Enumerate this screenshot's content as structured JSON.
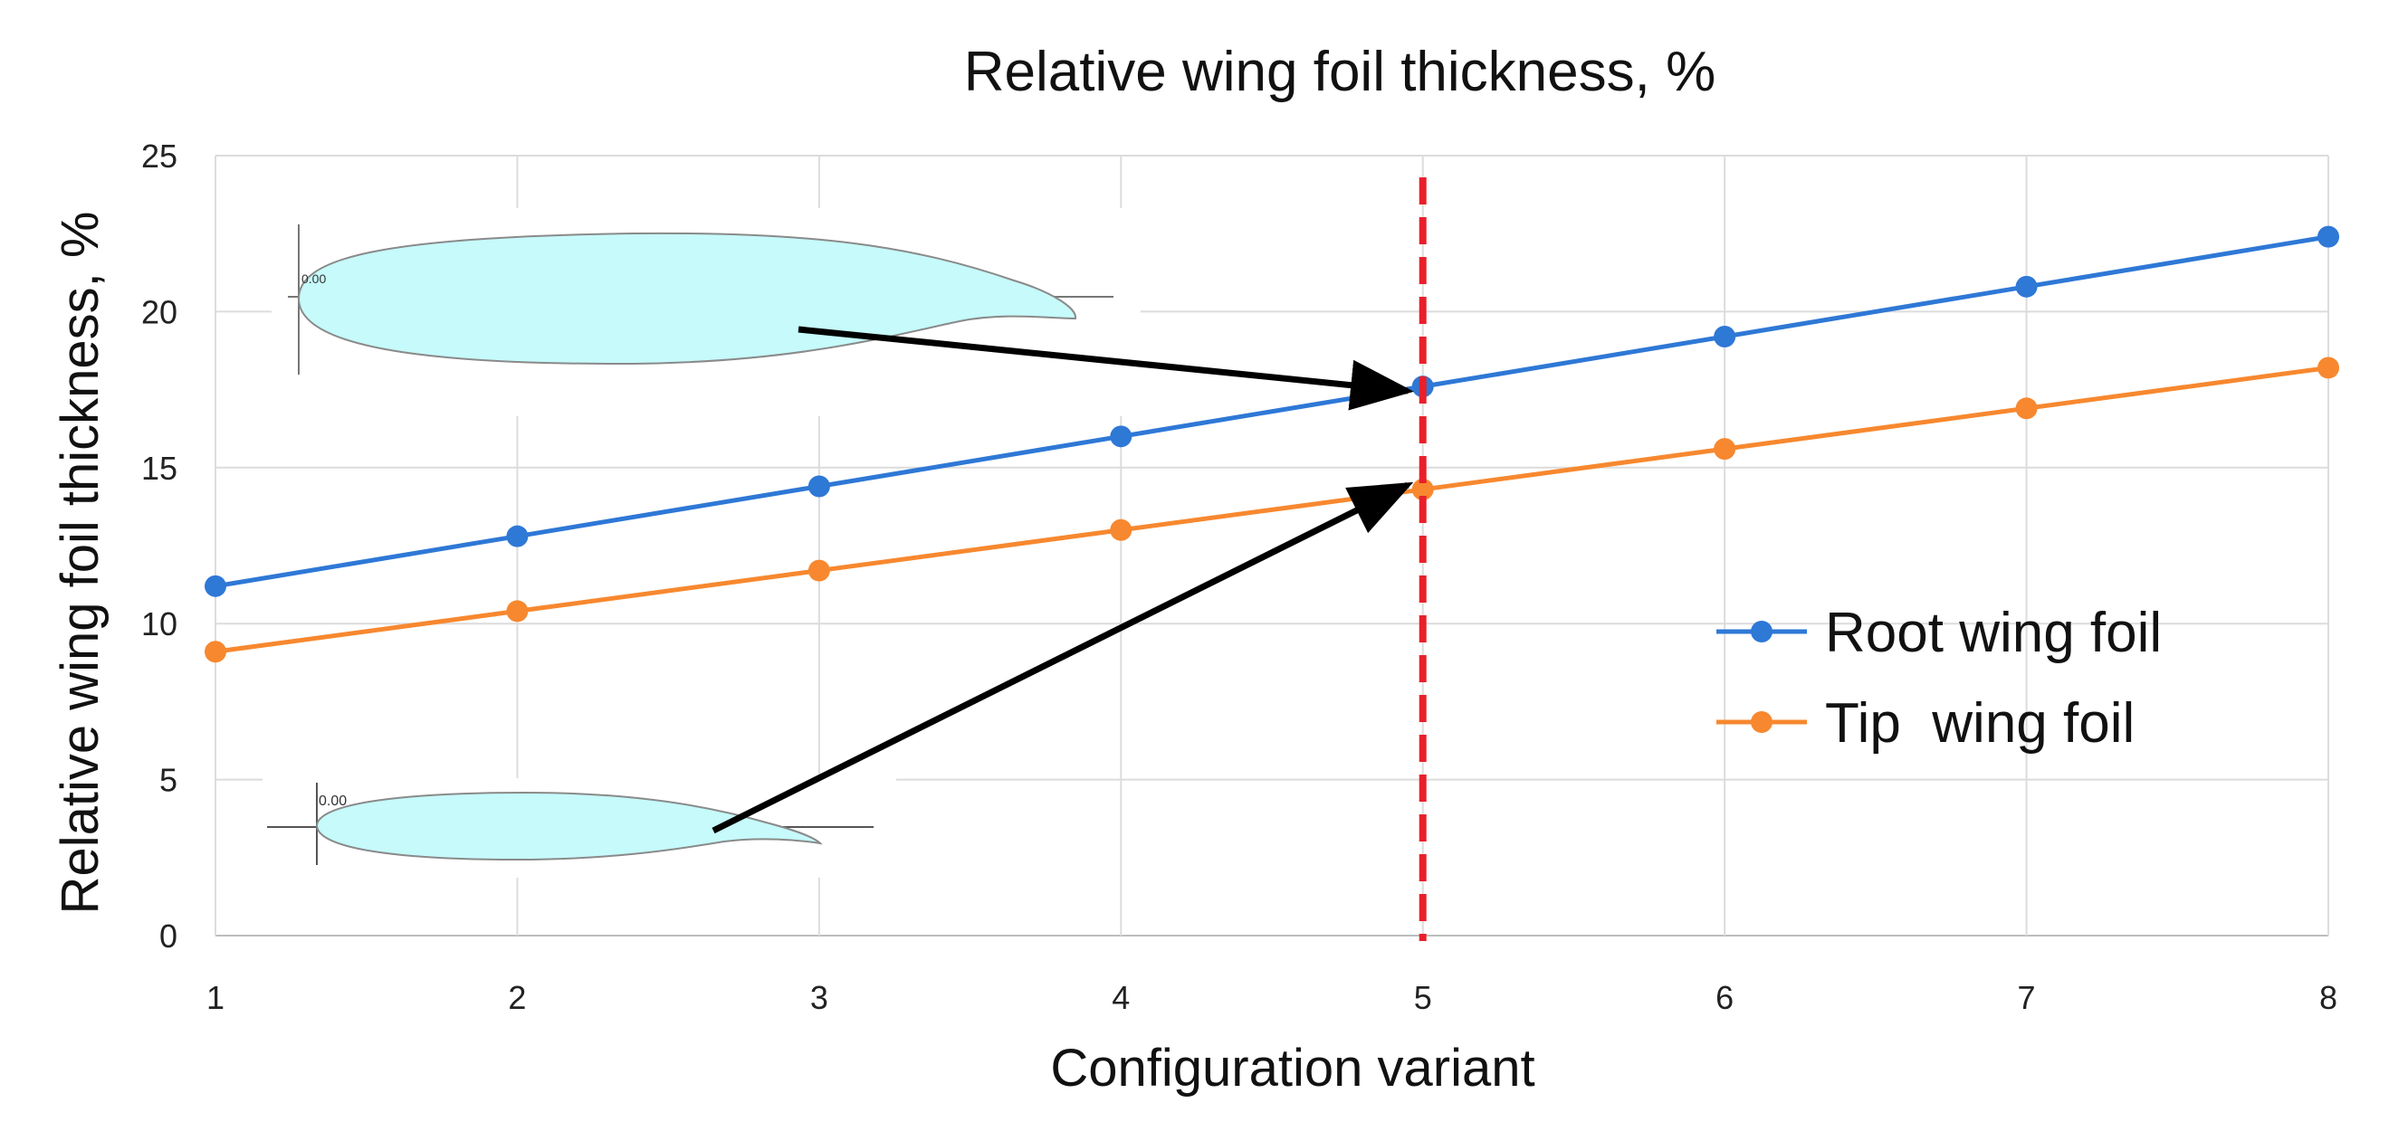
{
  "chart_data": {
    "type": "line",
    "title": "Relative wing foil thickness, %",
    "xlabel": "Configuration variant",
    "ylabel": "Relative wing foil thickness, %",
    "x": [
      1,
      2,
      3,
      4,
      5,
      6,
      7,
      8
    ],
    "xlim": [
      1,
      8
    ],
    "ylim": [
      0,
      25
    ],
    "yticks": [
      0,
      5,
      10,
      15,
      20,
      25
    ],
    "grid": true,
    "legend_position": "right",
    "series": [
      {
        "name": "Root wing foil",
        "color": "#2E78D6",
        "values": [
          11.2,
          12.8,
          14.4,
          16.0,
          17.6,
          19.2,
          20.8,
          22.4
        ]
      },
      {
        "name": "Tip  wing foil",
        "color": "#F7882F",
        "values": [
          9.1,
          10.4,
          11.7,
          13.0,
          14.3,
          15.6,
          16.9,
          18.2
        ]
      }
    ],
    "marker_line": {
      "x": 5,
      "color": "#E8202A"
    },
    "inset_labels": {
      "root_foil_label": "0.00",
      "tip_foil_label": "0.00"
    },
    "foil_fill": "#C6FAFB",
    "foil_stroke": "#8A8A8A"
  }
}
